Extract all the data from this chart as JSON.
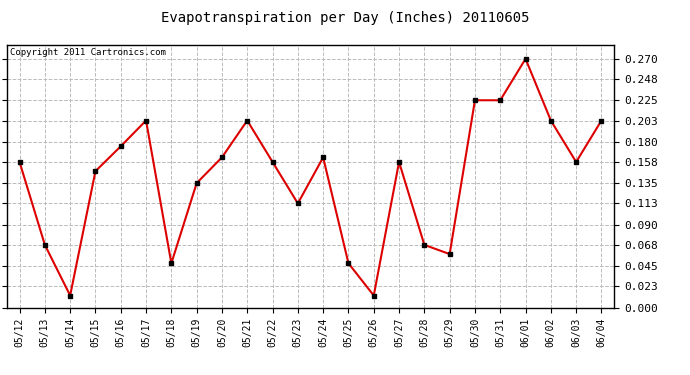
{
  "title": "Evapotranspiration per Day (Inches) 20110605",
  "copyright": "Copyright 2011 Cartronics.com",
  "dates": [
    "05/12",
    "05/13",
    "05/14",
    "05/15",
    "05/16",
    "05/17",
    "05/18",
    "05/19",
    "05/20",
    "05/21",
    "05/22",
    "05/23",
    "05/24",
    "05/25",
    "05/26",
    "05/27",
    "05/28",
    "05/29",
    "05/30",
    "05/31",
    "06/01",
    "06/02",
    "06/03",
    "06/04"
  ],
  "values": [
    0.158,
    0.068,
    0.013,
    0.148,
    0.175,
    0.203,
    0.048,
    0.135,
    0.163,
    0.203,
    0.158,
    0.113,
    0.163,
    0.048,
    0.013,
    0.158,
    0.068,
    0.058,
    0.225,
    0.225,
    0.27,
    0.203,
    0.158,
    0.203
  ],
  "line_color": "#dd0000",
  "marker_color": "#000000",
  "bg_color": "#ffffff",
  "grid_color": "#bbbbbb",
  "yticks": [
    0.0,
    0.023,
    0.045,
    0.068,
    0.09,
    0.113,
    0.135,
    0.158,
    0.18,
    0.203,
    0.225,
    0.248,
    0.27
  ],
  "ylim": [
    0.0,
    0.285
  ],
  "fig_width": 6.9,
  "fig_height": 3.75,
  "dpi": 100
}
